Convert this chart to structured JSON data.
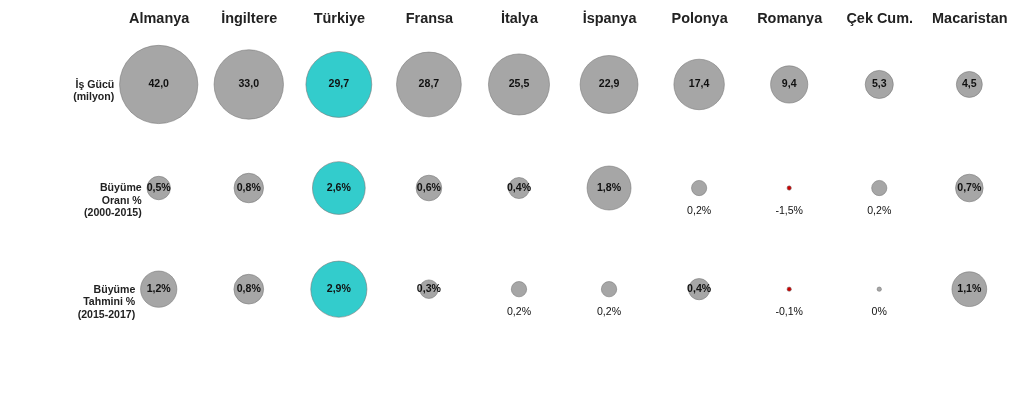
{
  "chart_data": {
    "type": "other",
    "categories": [
      "Almanya",
      "İngiltere",
      "Türkiye",
      "Fransa",
      "İtalya",
      "İspanya",
      "Polonya",
      "Romanya",
      "Çek Cum.",
      "Macaristan"
    ],
    "series": [
      {
        "name": "İş Gücü\n(milyon)",
        "values": [
          42.0,
          33.0,
          29.7,
          28.7,
          25.5,
          22.9,
          17.4,
          9.4,
          5.3,
          4.5
        ],
        "value_labels": [
          "42,0",
          "33,0",
          "29,7",
          "28,7",
          "25,5",
          "22,9",
          "17,4",
          "9,4",
          "5,3",
          "4,5"
        ],
        "colors": [
          "#a6a6a6",
          "#a6a6a6",
          "#33cccc",
          "#a6a6a6",
          "#a6a6a6",
          "#a6a6a6",
          "#a6a6a6",
          "#a6a6a6",
          "#a6a6a6",
          "#a6a6a6"
        ]
      },
      {
        "name": "Büyüme\nOranı %\n(2000-2015)",
        "values": [
          0.5,
          0.8,
          2.6,
          0.6,
          0.4,
          1.8,
          0.2,
          -1.5,
          0.2,
          0.7
        ],
        "value_labels": [
          "0,5%",
          "0,8%",
          "2,6%",
          "0,6%",
          "0,4%",
          "1,8%",
          "0,2%",
          "-1,5%",
          "0,2%",
          "0,7%"
        ],
        "colors": [
          "#a6a6a6",
          "#a6a6a6",
          "#33cccc",
          "#a6a6a6",
          "#a6a6a6",
          "#a6a6a6",
          "#a6a6a6",
          "#cc0000",
          "#a6a6a6",
          "#a6a6a6"
        ]
      },
      {
        "name": "Büyüme\nTahmini %\n(2015-2017)",
        "values": [
          1.2,
          0.8,
          2.9,
          0.3,
          0.2,
          0.2,
          0.4,
          -0.1,
          0,
          1.1
        ],
        "value_labels": [
          "1,2%",
          "0,8%",
          "2,9%",
          "0,3%",
          "0,2%",
          "0,2%",
          "0,4%",
          "-0,1%",
          "0%",
          "1,1%"
        ],
        "colors": [
          "#a6a6a6",
          "#a6a6a6",
          "#33cccc",
          "#a6a6a6",
          "#a6a6a6",
          "#a6a6a6",
          "#a6a6a6",
          "#cc0000",
          "#a6a6a6",
          "#a6a6a6"
        ]
      }
    ]
  }
}
